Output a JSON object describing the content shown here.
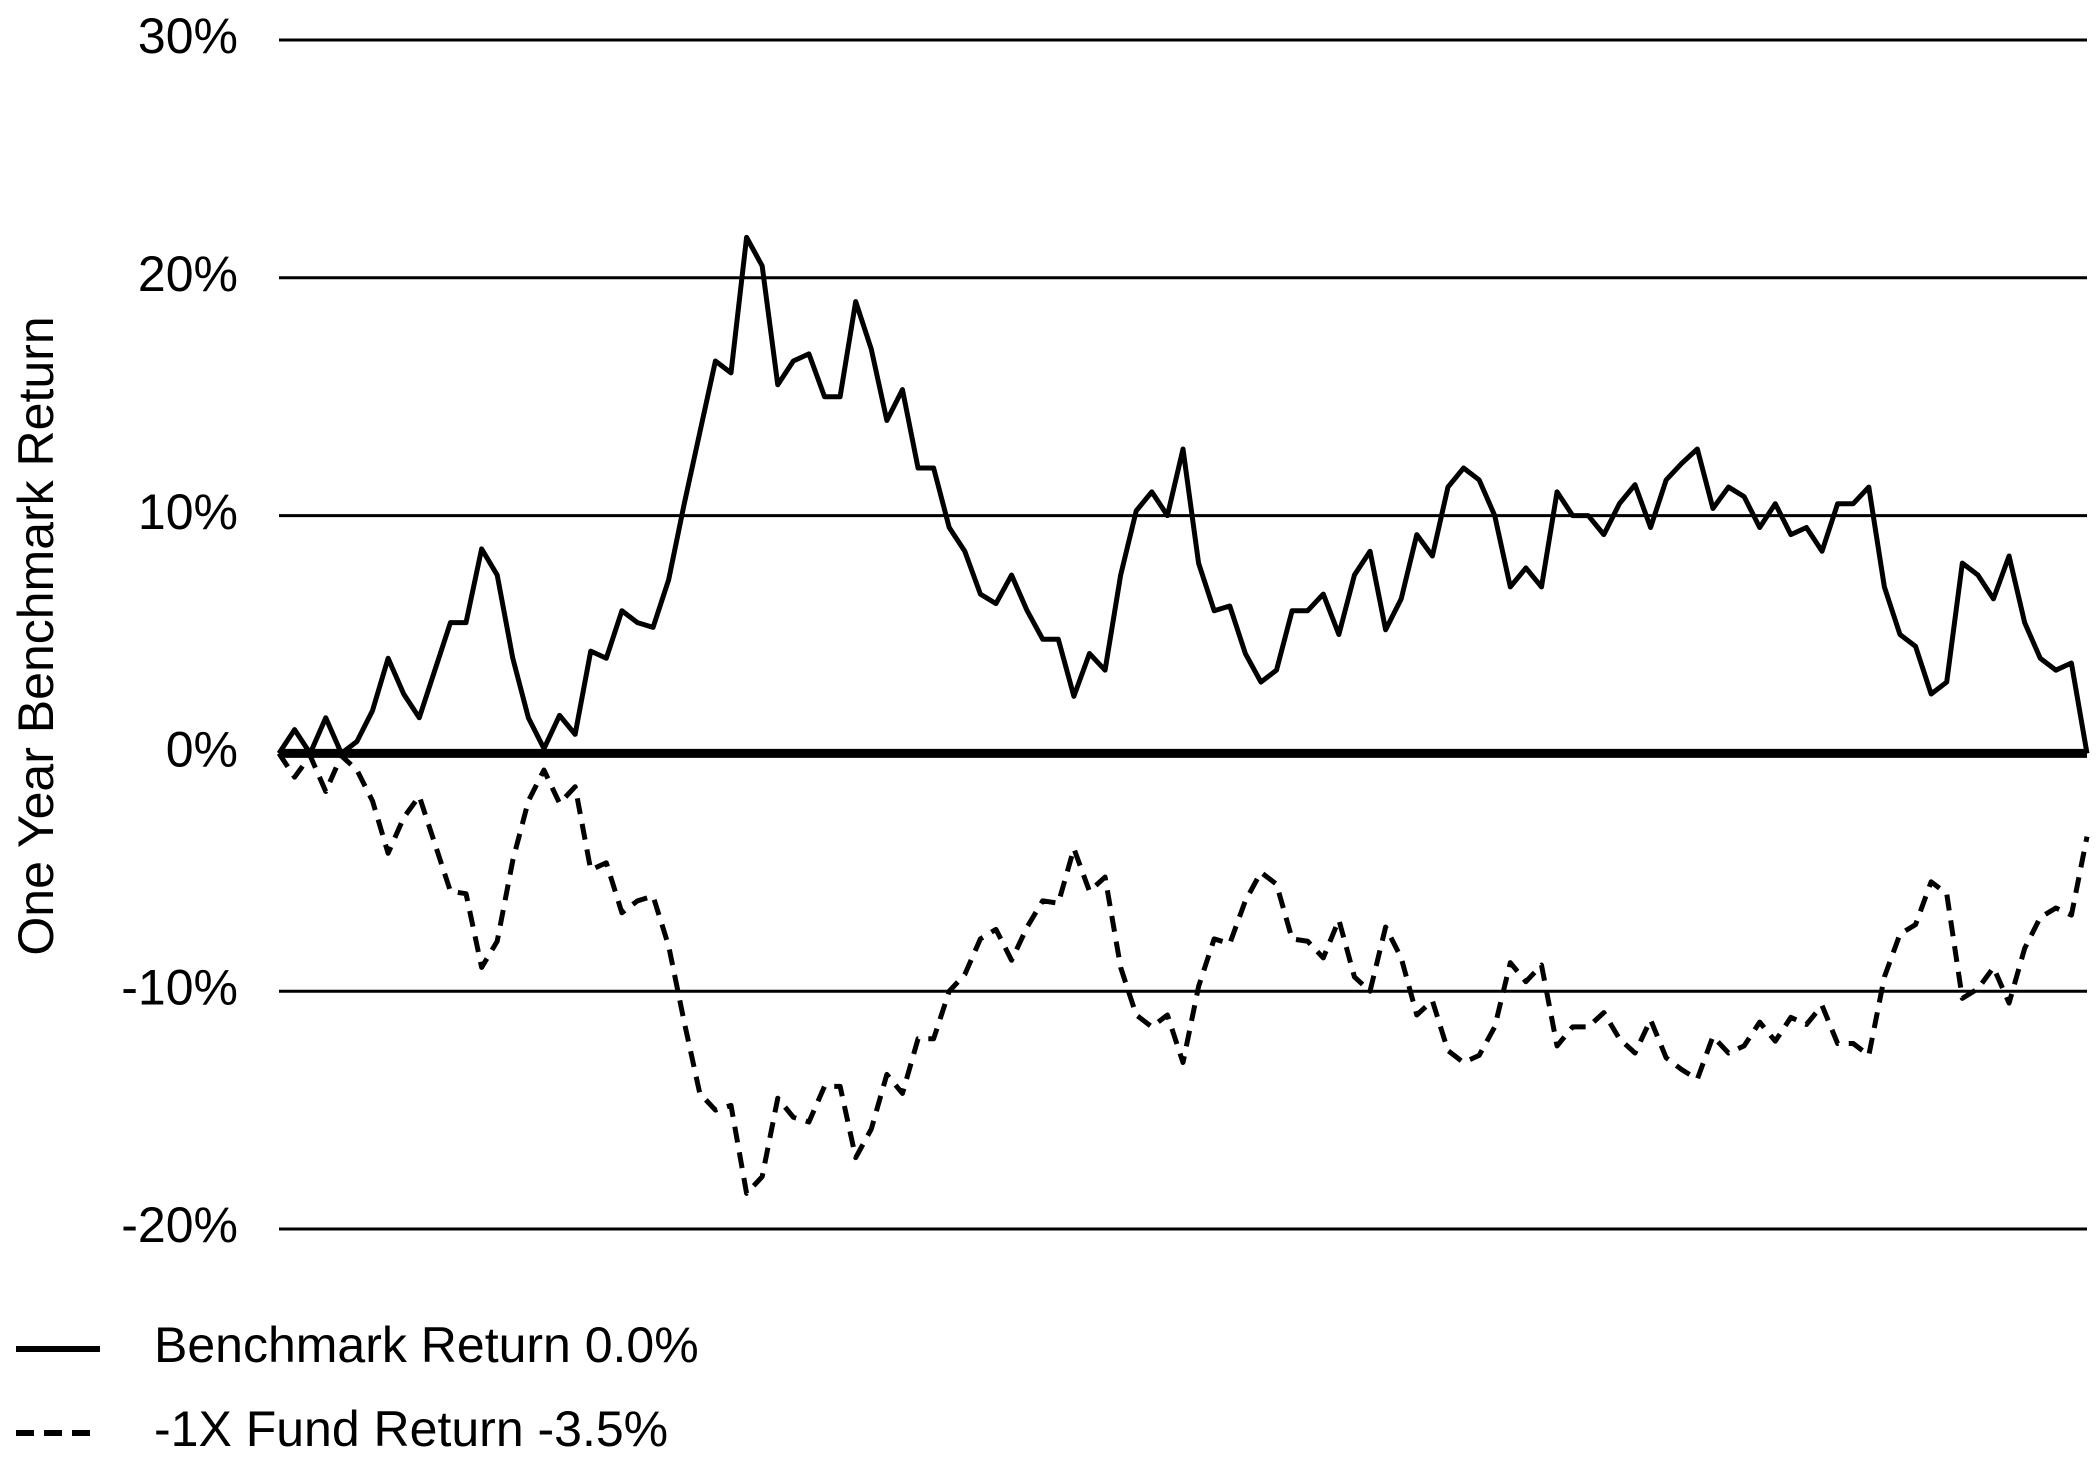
{
  "chart_data": {
    "type": "line",
    "y_label": "One Year Benchmark Return",
    "categories": [
      null,
      null,
      null,
      null,
      null,
      null,
      null,
      null,
      null,
      null,
      null,
      null,
      null,
      null,
      null,
      null,
      null,
      null,
      null,
      null,
      null,
      null,
      null,
      null,
      null,
      null,
      null,
      null,
      null,
      null,
      null,
      null,
      null,
      null,
      null,
      null,
      null,
      null,
      null,
      null,
      null,
      null,
      null,
      null,
      null,
      null,
      null,
      null,
      null,
      null,
      null,
      null,
      null,
      null,
      null,
      null,
      null,
      null,
      null,
      null,
      null,
      null,
      null,
      null,
      null,
      null,
      null,
      null,
      null,
      null,
      null,
      null,
      null,
      null,
      null,
      null,
      null,
      null,
      null,
      null,
      null,
      null,
      null,
      null,
      null,
      null,
      null,
      null,
      null,
      null,
      null,
      null,
      null,
      null,
      null,
      null,
      null,
      null,
      null,
      null,
      null,
      null,
      null,
      null,
      null,
      null,
      null,
      null,
      null,
      null,
      null,
      null,
      null,
      null,
      null,
      null,
      null
    ],
    "series": [
      {
        "name": "Benchmark Return 0.0%",
        "color": "#000000",
        "dashed": false,
        "values": [
          0,
          1,
          0,
          1.5,
          0,
          0.5,
          1.8,
          4,
          2.5,
          1.5,
          3.5,
          5.5,
          5.5,
          8.6,
          7.5,
          4,
          1.5,
          0.2,
          1.6,
          0.8,
          4.3,
          4,
          6,
          5.5,
          5.3,
          7.3,
          10.5,
          13.5,
          16.5,
          16,
          21.7,
          20.5,
          15.5,
          16.5,
          16.8,
          15,
          15,
          19,
          17,
          14,
          15.3,
          12,
          12,
          9.5,
          8.5,
          6.7,
          6.3,
          7.5,
          6,
          4.8,
          4.8,
          2.4,
          4.2,
          3.5,
          7.5,
          10.2,
          11,
          10,
          12.8,
          8,
          6,
          6.2,
          4.2,
          3,
          3.5,
          6,
          6,
          6.7,
          5,
          7.5,
          8.5,
          5.2,
          6.5,
          9.2,
          8.3,
          11.2,
          12,
          11.5,
          10,
          7,
          7.8,
          7,
          11,
          10,
          10,
          9.2,
          10.5,
          11.3,
          9.5,
          11.5,
          12.2,
          12.8,
          10.3,
          11.2,
          10.8,
          9.5,
          10.5,
          9.2,
          9.5,
          8.5,
          10.5,
          10.5,
          11.2,
          7,
          5,
          4.5,
          2.5,
          3,
          8,
          7.5,
          6.5,
          8.3,
          5.5,
          4,
          3.5,
          3.8,
          0
        ]
      },
      {
        "name": "-1X Fund Return -3.5%",
        "color": "#000000",
        "dashed": true,
        "values": [
          0,
          -1.0,
          -0.1,
          -1.6,
          -0.1,
          -0.7,
          -2.0,
          -4.2,
          -2.7,
          -1.8,
          -3.8,
          -5.8,
          -5.9,
          -9.0,
          -7.9,
          -4.5,
          -2.0,
          -0.7,
          -2.1,
          -1.4,
          -4.9,
          -4.6,
          -6.7,
          -6.2,
          -6.0,
          -8.1,
          -11.3,
          -14.3,
          -15.0,
          -14.8,
          -18.5,
          -17.8,
          -14.5,
          -15.3,
          -15.5,
          -14,
          -14,
          -17,
          -15.8,
          -13.5,
          -14.3,
          -12,
          -12,
          -10,
          -9.3,
          -7.8,
          -7.4,
          -8.7,
          -7.3,
          -6.2,
          -6.3,
          -4.0,
          -5.8,
          -5.2,
          -9.0,
          -11,
          -11.5,
          -11,
          -13,
          -9.8,
          -7.8,
          -8.0,
          -6.2,
          -5,
          -5.5,
          -7.8,
          -7.9,
          -8.6,
          -7,
          -9.4,
          -10,
          -7.3,
          -8.6,
          -11,
          -10.4,
          -12.5,
          -13,
          -12.7,
          -11.5,
          -8.8,
          -9.6,
          -8.9,
          -12.3,
          -11.5,
          -11.5,
          -10.9,
          -12,
          -12.6,
          -11.2,
          -12.8,
          -13.3,
          -13.7,
          -11.9,
          -12.6,
          -12.3,
          -11.3,
          -12.1,
          -11.1,
          -11.4,
          -10.6,
          -12.2,
          -12.2,
          -12.7,
          -9.4,
          -7.6,
          -7.2,
          -5.4,
          -5.9,
          -10.3,
          -9.9,
          -9.0,
          -10.5,
          -8.2,
          -6.9,
          -6.5,
          -6.8,
          -3.5
        ]
      }
    ],
    "ylim": [
      -20,
      30
    ],
    "yticks": [
      {
        "value": -20,
        "label": "-20%"
      },
      {
        "value": -10,
        "label": "-10%"
      },
      {
        "value": 0,
        "label": "0%"
      },
      {
        "value": 10,
        "label": "10%"
      },
      {
        "value": 20,
        "label": "20%"
      },
      {
        "value": 30,
        "label": "30%"
      }
    ],
    "grid": true,
    "legend": "bottom-left"
  }
}
